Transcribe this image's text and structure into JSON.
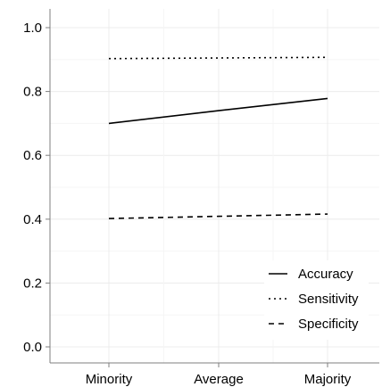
{
  "chart_data": {
    "type": "line",
    "title": "",
    "xlabel": "",
    "ylabel": "",
    "categories": [
      "Minority",
      "Average",
      "Majority"
    ],
    "ylim": [
      0.0,
      1.0
    ],
    "yticks": [
      "0.0",
      "0.2",
      "0.4",
      "0.6",
      "0.8",
      "1.0"
    ],
    "grid": true,
    "legend_position": "bottom-right",
    "series": [
      {
        "name": "Accuracy",
        "values": [
          0.7,
          0.74,
          0.778
        ],
        "line_style": "solid"
      },
      {
        "name": "Sensitivity",
        "values": [
          0.903,
          0.905,
          0.907
        ],
        "line_style": "dotted"
      },
      {
        "name": "Specificity",
        "values": [
          0.402,
          0.409,
          0.416
        ],
        "line_style": "dashed"
      }
    ],
    "colors": {
      "line": "#000000",
      "grid": "#ececec",
      "axis": "#7f7f7f"
    }
  }
}
